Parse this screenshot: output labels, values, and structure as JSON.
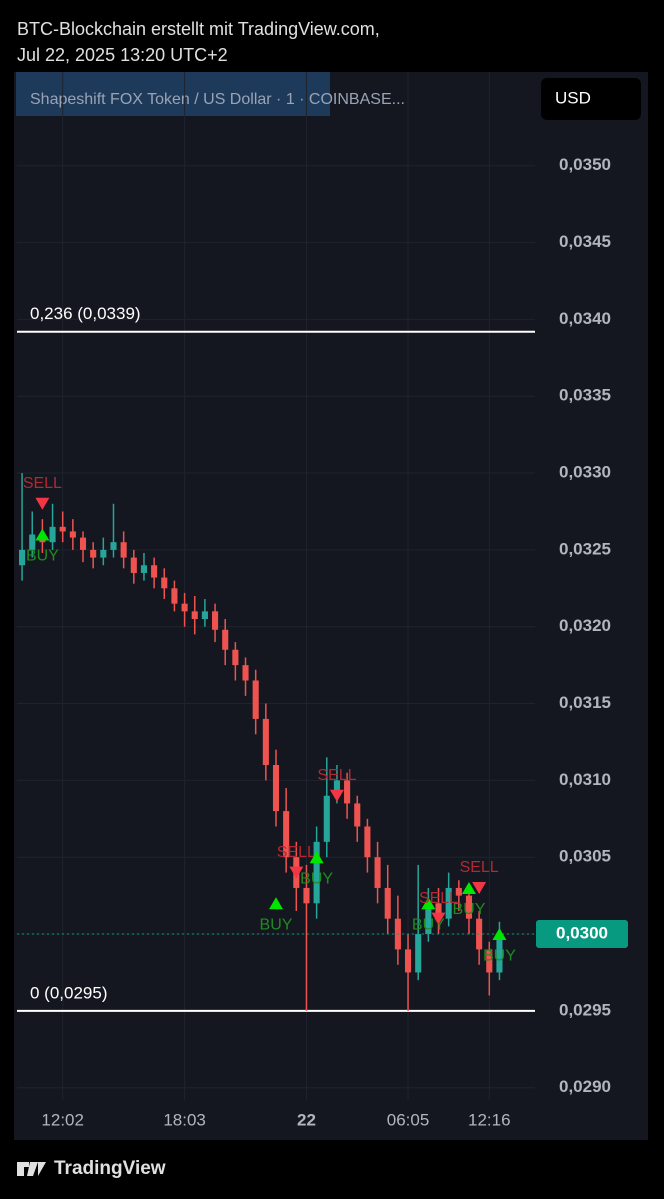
{
  "header": {
    "line1": "BTC-Blockchain erstellt mit TradingView.com,",
    "line2": "Jul 22, 2025 13:20 UTC+2"
  },
  "footer": {
    "brand": "TradingView"
  },
  "chart_data": {
    "type": "candlestick",
    "title": "Shapeshift FOX Token / US Dollar · 1 · COINBASE...",
    "currency": "USD",
    "up_color": "#26a69a",
    "down_color": "#ef5350",
    "grid": true,
    "open": [
      0.0324,
      0.0325,
      0.0326,
      0.03255,
      0.03265,
      0.03262,
      0.03258,
      0.0325,
      0.03245,
      0.0325,
      0.03255,
      0.03245,
      0.03235,
      0.0324,
      0.03232,
      0.03225,
      0.03215,
      0.0321,
      0.03205,
      0.0321,
      0.03198,
      0.03185,
      0.03175,
      0.03165,
      0.0314,
      0.0311,
      0.0308,
      0.0305,
      0.0303,
      0.0302,
      0.0306,
      0.0309,
      0.031,
      0.03085,
      0.0307,
      0.0305,
      0.0303,
      0.0301,
      0.0299,
      0.02975,
      0.03,
      0.0302,
      0.0301,
      0.0303,
      0.03025,
      0.0301,
      0.0299,
      0.02975
    ],
    "high": [
      0.033,
      0.03275,
      0.0327,
      0.0328,
      0.03275,
      0.0327,
      0.03262,
      0.03255,
      0.03258,
      0.0328,
      0.03262,
      0.0325,
      0.03248,
      0.03245,
      0.03238,
      0.0323,
      0.03222,
      0.0322,
      0.03218,
      0.03215,
      0.03205,
      0.0319,
      0.0318,
      0.03172,
      0.0315,
      0.0312,
      0.03095,
      0.0306,
      0.03045,
      0.0307,
      0.03115,
      0.0311,
      0.03105,
      0.0309,
      0.03075,
      0.0306,
      0.03045,
      0.03025,
      0.03,
      0.03045,
      0.0303,
      0.0303,
      0.0304,
      0.03035,
      0.0303,
      0.03015,
      0.02995,
      0.03008
    ],
    "low": [
      0.0323,
      0.03245,
      0.03248,
      0.0325,
      0.03255,
      0.0325,
      0.03242,
      0.03238,
      0.0324,
      0.03245,
      0.03238,
      0.03228,
      0.0323,
      0.03225,
      0.03218,
      0.0321,
      0.032,
      0.03195,
      0.032,
      0.0319,
      0.03175,
      0.03165,
      0.03155,
      0.0313,
      0.031,
      0.0307,
      0.0304,
      0.03015,
      0.0295,
      0.0301,
      0.0305,
      0.03085,
      0.03075,
      0.0306,
      0.0304,
      0.0302,
      0.03,
      0.0298,
      0.0295,
      0.0297,
      0.02995,
      0.03,
      0.03005,
      0.03015,
      0.03,
      0.0298,
      0.0296,
      0.0297
    ],
    "close": [
      0.0325,
      0.0326,
      0.03255,
      0.03265,
      0.03262,
      0.03258,
      0.0325,
      0.03245,
      0.0325,
      0.03255,
      0.03245,
      0.03235,
      0.0324,
      0.03232,
      0.03225,
      0.03215,
      0.0321,
      0.03205,
      0.0321,
      0.03198,
      0.03185,
      0.03175,
      0.03165,
      0.0314,
      0.0311,
      0.0308,
      0.0305,
      0.0303,
      0.0302,
      0.0306,
      0.0309,
      0.031,
      0.03085,
      0.0307,
      0.0305,
      0.0303,
      0.0301,
      0.0299,
      0.02975,
      0.03,
      0.0302,
      0.0301,
      0.0303,
      0.03025,
      0.0301,
      0.0299,
      0.02975,
      0.03
    ],
    "xlim": [
      -0.5,
      50.5
    ],
    "xticks": [
      {
        "value": 4,
        "label": "12:02"
      },
      {
        "value": 16,
        "label": "18:03"
      },
      {
        "value": 28,
        "label": "22"
      },
      {
        "value": 38,
        "label": "06:05"
      },
      {
        "value": 46,
        "label": "12:16"
      }
    ],
    "ylim": [
      0.02892,
      0.03561
    ],
    "yticks": [
      {
        "value": 0.029,
        "label": "0,0290"
      },
      {
        "value": 0.0295,
        "label": "0,0295"
      },
      {
        "value": 0.03,
        "label": "0,0300"
      },
      {
        "value": 0.0305,
        "label": "0,0305"
      },
      {
        "value": 0.031,
        "label": "0,0310"
      },
      {
        "value": 0.0315,
        "label": "0,0315"
      },
      {
        "value": 0.032,
        "label": "0,0320"
      },
      {
        "value": 0.0325,
        "label": "0,0325"
      },
      {
        "value": 0.033,
        "label": "0,0330"
      },
      {
        "value": 0.0335,
        "label": "0,0335"
      },
      {
        "value": 0.034,
        "label": "0,0340"
      },
      {
        "value": 0.0345,
        "label": "0,0345"
      },
      {
        "value": 0.035,
        "label": "0,0350"
      }
    ],
    "last_price": {
      "value": 0.03,
      "label": "0,0300",
      "color": "#089981"
    },
    "levels": [
      {
        "value": 0.03392,
        "label": "0,236 (0,0339)"
      },
      {
        "value": 0.0295,
        "label": "0 (0,0295)"
      }
    ],
    "signals": [
      {
        "label": "SELL",
        "x": 2,
        "y": 0.0328
      },
      {
        "label": "BUY",
        "x": 2,
        "y": 0.0326
      },
      {
        "label": "BUY",
        "x": 25,
        "y": 0.0302
      },
      {
        "label": "SELL",
        "x": 27,
        "y": 0.0304
      },
      {
        "label": "BUY",
        "x": 29,
        "y": 0.0305
      },
      {
        "label": "SELL",
        "x": 31,
        "y": 0.0309
      },
      {
        "label": "BUY",
        "x": 40,
        "y": 0.0302
      },
      {
        "label": "SELL",
        "x": 41,
        "y": 0.0301
      },
      {
        "label": "BUY",
        "x": 44,
        "y": 0.0303
      },
      {
        "label": "SELL",
        "x": 45,
        "y": 0.0303
      },
      {
        "label": "BUY",
        "x": 47,
        "y": 0.03
      }
    ]
  }
}
